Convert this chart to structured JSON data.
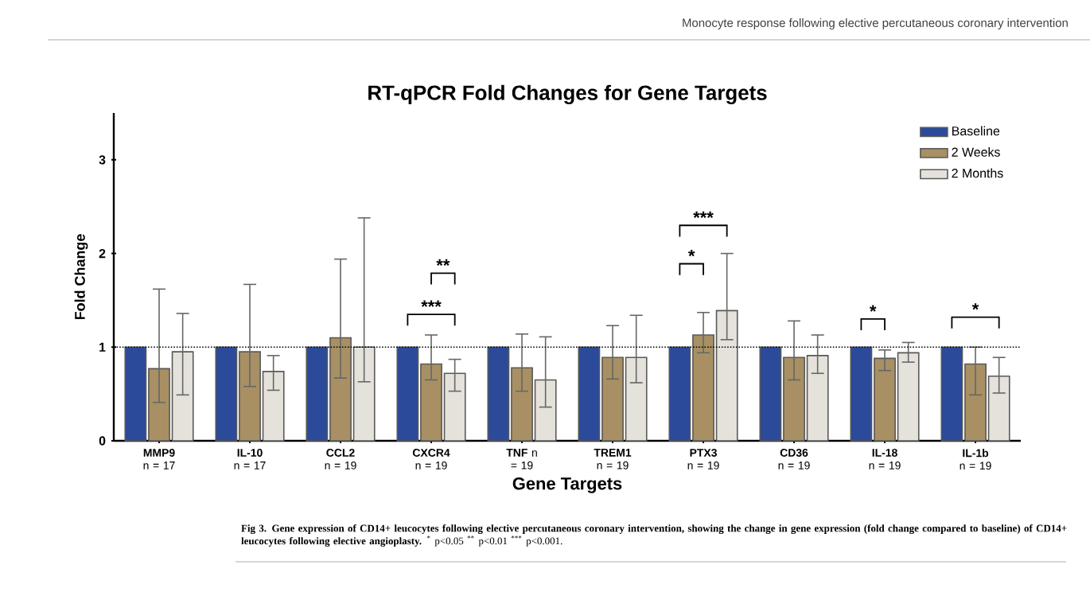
{
  "chart_data": {
    "type": "bar",
    "title": "RT-qPCR Fold Changes for Gene Targets",
    "xlabel": "Gene Targets",
    "ylabel": "Fold Change",
    "categories": [
      "**MMP9** n = 17",
      "**IL-10** n = 17",
      "**CCL2** n = 19",
      "**CXCR4** n = 19",
      "**TNF** n = 19",
      "**TREM1** n = 19",
      "**PTX3** n = 19",
      "**CD36** n = 19",
      "**IL-18** n = 19",
      "**IL-1b** n = 19"
    ],
    "series": [
      {
        "name": "Baseline",
        "color": "#2b4a9a",
        "values": [
          1,
          1,
          1,
          1,
          1,
          1,
          1,
          1,
          1,
          1
        ]
      },
      {
        "name": "2 Weeks",
        "color": "#a89064",
        "values": [
          0.77,
          0.95,
          1.1,
          0.82,
          0.78,
          0.89,
          1.13,
          0.89,
          0.88,
          0.82
        ],
        "errors": [
          [
            0.41,
            1.62
          ],
          [
            0.58,
            1.67
          ],
          [
            0.67,
            1.94
          ],
          [
            0.65,
            1.13
          ],
          [
            0.53,
            1.14
          ],
          [
            0.66,
            1.23
          ],
          [
            0.94,
            1.37
          ],
          [
            0.65,
            1.28
          ],
          [
            0.75,
            0.97
          ],
          [
            0.49,
            1.0
          ]
        ]
      },
      {
        "name": "2 Months",
        "color": "#e4e2da",
        "values": [
          0.95,
          0.74,
          1.0,
          0.72,
          0.65,
          0.89,
          1.39,
          0.91,
          0.94,
          0.69
        ],
        "errors": [
          [
            0.49,
            1.36
          ],
          [
            0.54,
            0.91
          ],
          [
            0.63,
            2.38
          ],
          [
            0.53,
            0.87
          ],
          [
            0.36,
            1.11
          ],
          [
            0.62,
            1.34
          ],
          [
            1.08,
            2.0
          ],
          [
            0.72,
            1.13
          ],
          [
            0.84,
            1.05
          ],
          [
            0.51,
            0.89
          ]
        ]
      }
    ],
    "ylim": [
      0,
      3.5
    ],
    "yticks": [
      0,
      1,
      2,
      3
    ],
    "ref_lines": [
      {
        "axis": "y",
        "value": 1,
        "line_style": "dotted"
      }
    ],
    "legend": "top right",
    "annotations": [
      "***",
      "**",
      "*",
      "***",
      "*",
      "*",
      "Monocyte response following elective percutaneous coronary intervention",
      "**Fig 3. Gene expression of CD14+ leucocytes following elective percutaneous coronary intervention, showing the change in gene expression (fold change compared to baseline) of CD14+ leucocytes following elective angioplasty.** $^{*}$ p<0.05 $^{**}$ p<0.01 $^{***}$ p<0.001."
    ]
  }
}
